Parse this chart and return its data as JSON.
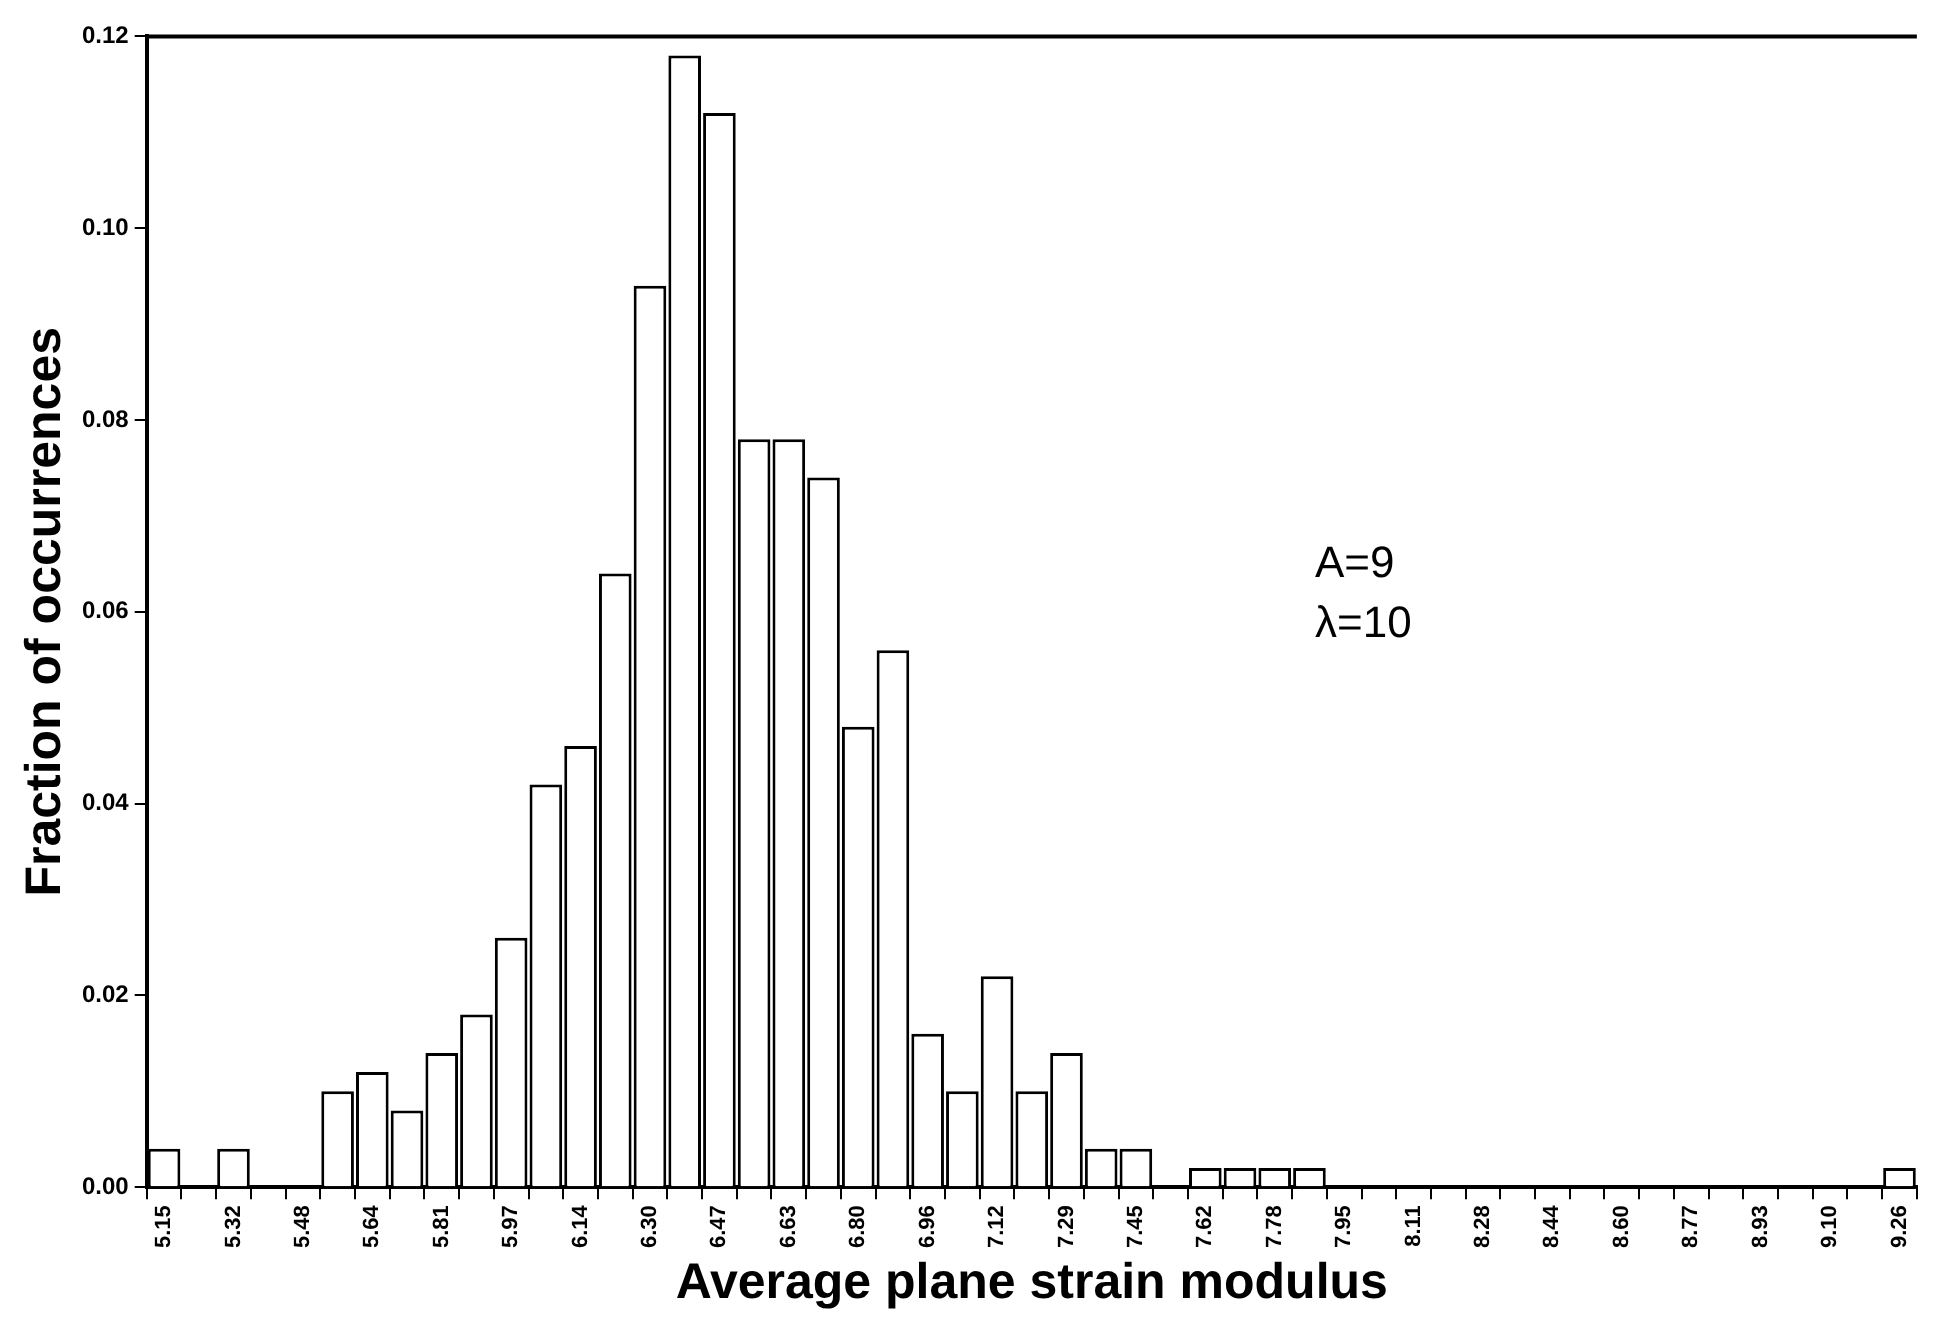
{
  "chart_data": {
    "type": "bar",
    "xlabel": "Average plane strain modulus",
    "ylabel": "Fraction of occurrences",
    "categories": [
      "5.15",
      null,
      "5.32",
      null,
      "5.48",
      null,
      "5.64",
      null,
      "5.81",
      null,
      "5.97",
      null,
      "6.14",
      null,
      "6.30",
      null,
      "6.47",
      null,
      "6.63",
      null,
      "6.80",
      null,
      "6.96",
      null,
      "7.12",
      null,
      "7.29",
      null,
      "7.45",
      null,
      "7.62",
      null,
      "7.78",
      null,
      "7.95",
      null,
      "8.11",
      null,
      "8.28",
      null,
      "8.44",
      null,
      "8.60",
      null,
      "8.77",
      null,
      "8.93",
      null,
      "9.10",
      null,
      "9.26"
    ],
    "series": [
      {
        "color": "#ffffff",
        "values": [
          0.004,
          0,
          0.004,
          0,
          0,
          0.01,
          0.012,
          0.008,
          0.014,
          0.018,
          0.026,
          0.042,
          0.046,
          0.064,
          0.094,
          0.118,
          0.112,
          0.078,
          0.078,
          0.074,
          0.048,
          0.056,
          0.016,
          0.01,
          0.022,
          0.01,
          0.014,
          0.004,
          0.004,
          0,
          0.002,
          0.002,
          0.002,
          0.002,
          0,
          0,
          0,
          0,
          0,
          0,
          0,
          0,
          0,
          0,
          0,
          0,
          0,
          0,
          0,
          0,
          0.002
        ]
      }
    ],
    "ylim": [
      0,
      0.12
    ],
    "yticks": [
      {
        "value": 0,
        "label": "0.00"
      },
      {
        "value": 0.02,
        "label": "0.02"
      },
      {
        "value": 0.04,
        "label": "0.04"
      },
      {
        "value": 0.06,
        "label": "0.06"
      },
      {
        "value": 0.08,
        "label": "0.08"
      },
      {
        "value": 0.1,
        "label": "0.10"
      },
      {
        "value": 0.12,
        "label": "0.12"
      }
    ],
    "annotations": [
      "A=9",
      "λ=10"
    ],
    "grid": false,
    "legend": false
  }
}
